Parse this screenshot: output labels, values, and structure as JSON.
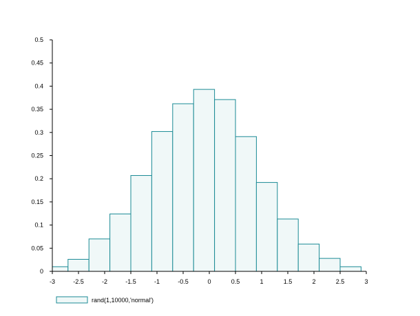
{
  "chart_data": {
    "type": "bar",
    "title": "",
    "xlabel": "",
    "ylabel": "",
    "xlim": [
      -3,
      3
    ],
    "ylim": [
      0,
      0.5
    ],
    "x_ticks": [
      "-3",
      "-2.5",
      "-2",
      "-1.5",
      "-1",
      "-0.5",
      "0",
      "0.5",
      "1",
      "1.5",
      "2",
      "2.5",
      "3"
    ],
    "y_ticks": [
      "0",
      "0.05",
      "0.1",
      "0.15",
      "0.2",
      "0.25",
      "0.3",
      "0.35",
      "0.4",
      "0.45",
      "0.5"
    ],
    "bins": [
      {
        "x0": -3.1,
        "x1": -2.7,
        "value": 0.01
      },
      {
        "x0": -2.7,
        "x1": -2.3,
        "value": 0.026
      },
      {
        "x0": -2.3,
        "x1": -1.9,
        "value": 0.07
      },
      {
        "x0": -1.9,
        "x1": -1.5,
        "value": 0.124
      },
      {
        "x0": -1.5,
        "x1": -1.1,
        "value": 0.207
      },
      {
        "x0": -1.1,
        "x1": -0.7,
        "value": 0.302
      },
      {
        "x0": -0.7,
        "x1": -0.3,
        "value": 0.362
      },
      {
        "x0": -0.3,
        "x1": 0.1,
        "value": 0.393
      },
      {
        "x0": 0.1,
        "x1": 0.5,
        "value": 0.371
      },
      {
        "x0": 0.5,
        "x1": 0.9,
        "value": 0.291
      },
      {
        "x0": 0.9,
        "x1": 1.3,
        "value": 0.192
      },
      {
        "x0": 1.3,
        "x1": 1.7,
        "value": 0.113
      },
      {
        "x0": 1.7,
        "x1": 2.1,
        "value": 0.059
      },
      {
        "x0": 2.1,
        "x1": 2.5,
        "value": 0.028
      },
      {
        "x0": 2.5,
        "x1": 2.9,
        "value": 0.01
      }
    ],
    "legend": {
      "label": "rand(1,10000,'normal')",
      "placement": "bottom-left"
    },
    "grid": false,
    "colors": {
      "bar_fill": "#f0f8f8",
      "bar_stroke": "#1a8a95",
      "axis": "#000000"
    }
  }
}
